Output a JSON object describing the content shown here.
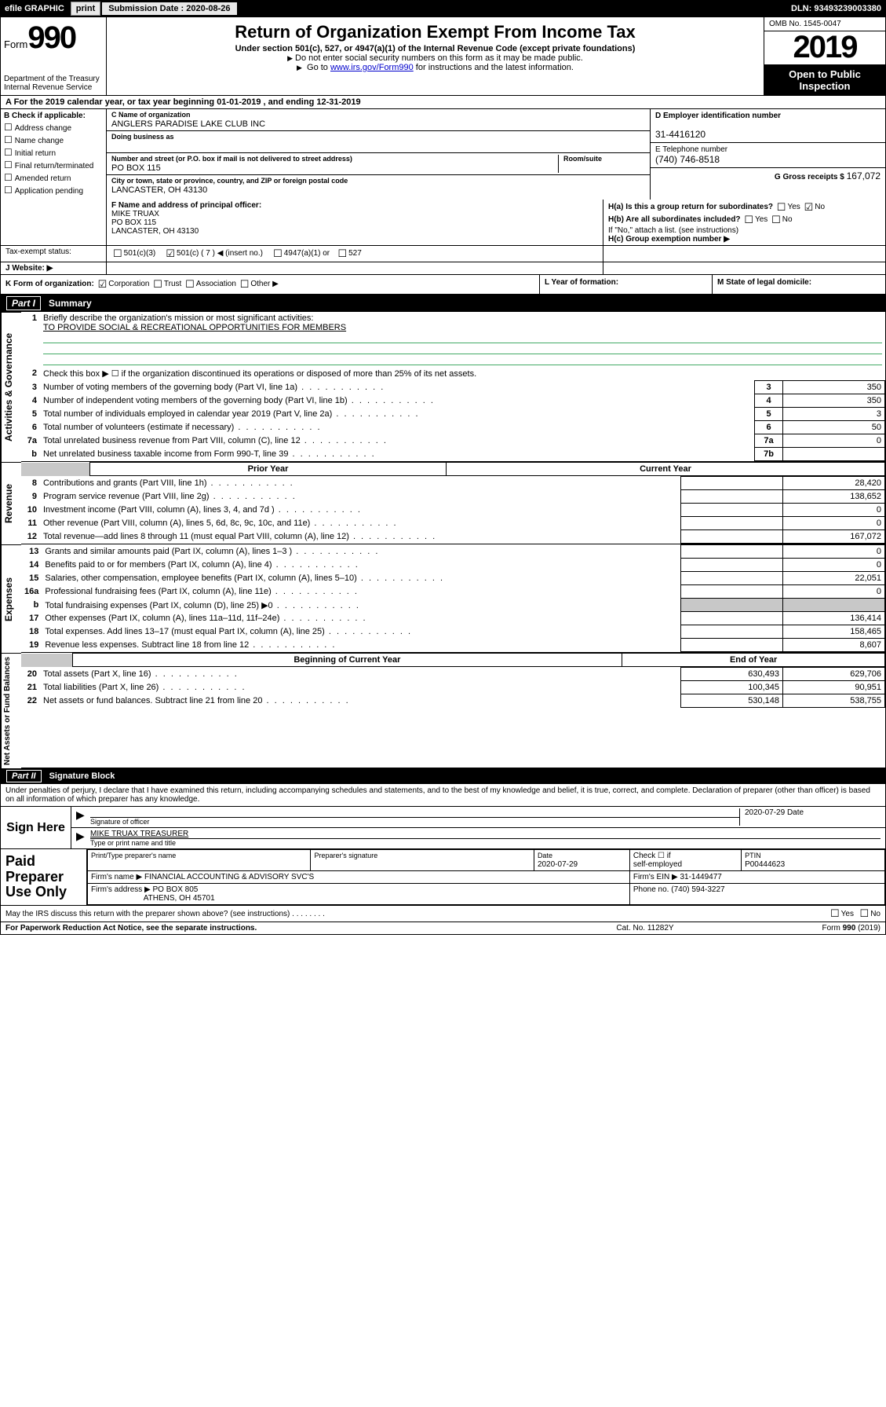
{
  "topbar": {
    "efile": "efile GRAPHIC",
    "print": "print",
    "subLabel": "Submission Date : 2020-08-26",
    "dln": "DLN: 93493239003380"
  },
  "header": {
    "formWord": "Form",
    "formNum": "990",
    "dept": "Department of the Treasury\nInternal Revenue Service",
    "title": "Return of Organization Exempt From Income Tax",
    "sub": "Under section 501(c), 527, or 4947(a)(1) of the Internal Revenue Code (except private foundations)",
    "note1": "Do not enter social security numbers on this form as it may be made public.",
    "note2a": "Go to ",
    "note2link": "www.irs.gov/Form990",
    "note2b": " for instructions and the latest information.",
    "omb": "OMB No. 1545-0047",
    "year": "2019",
    "open1": "Open to Public",
    "open2": "Inspection"
  },
  "rowA": "A  For the 2019 calendar year, or tax year beginning 01-01-2019    , and ending 12-31-2019",
  "colB": {
    "hdr": "B Check if applicable:",
    "items": [
      "Address change",
      "Name change",
      "Initial return",
      "Final return/terminated",
      "Amended return",
      "Application pending"
    ]
  },
  "colC": {
    "nameLabel": "C Name of organization",
    "name": "ANGLERS PARADISE LAKE CLUB INC",
    "dbaLabel": "Doing business as",
    "dba": "",
    "addrLabel": "Number and street (or P.O. box if mail is not delivered to street address)",
    "roomLabel": "Room/suite",
    "addr": "PO BOX 115",
    "cityLabel": "City or town, state or province, country, and ZIP or foreign postal code",
    "city": "LANCASTER, OH  43130"
  },
  "colR": {
    "einLabel": "D Employer identification number",
    "ein": "31-4416120",
    "telLabel": "E Telephone number",
    "tel": "(740) 746-8518",
    "grossLabel": "G Gross receipts $",
    "gross": "167,072"
  },
  "rowF": {
    "label": "F  Name and address of principal officer:",
    "name": "MIKE TRUAX",
    "addr": "PO BOX 115",
    "city": "LANCASTER, OH  43130"
  },
  "rowH": {
    "haLabel": "H(a)  Is this a group return for subordinates?",
    "hbLabel": "H(b)  Are all subordinates included?",
    "hbNote": "If \"No,\" attach a list. (see instructions)",
    "hcLabel": "H(c)  Group exemption number ▶",
    "yes": "Yes",
    "no": "No"
  },
  "rowI": {
    "label": "Tax-exempt status:",
    "o1": "501(c)(3)",
    "o2": "501(c) ( 7 ) ◀ (insert no.)",
    "o3": "4947(a)(1) or",
    "o4": "527"
  },
  "rowJ": {
    "label": "J   Website: ▶"
  },
  "klm": {
    "k": "K Form of organization:",
    "kopts": [
      "Corporation",
      "Trust",
      "Association",
      "Other ▶"
    ],
    "l": "L Year of formation:",
    "m": "M State of legal domicile:"
  },
  "partI": {
    "num": "Part I",
    "title": "Summary"
  },
  "gov": {
    "sideLabel": "Activities & Governance",
    "l1a": "Briefly describe the organization's mission or most significant activities:",
    "l1b": "TO PROVIDE SOCIAL & RECREATIONAL OPPORTUNITIES FOR MEMBERS",
    "l2": "Check this box ▶ ☐  if the organization discontinued its operations or disposed of more than 25% of its net assets.",
    "rows": [
      {
        "n": "3",
        "d": "Number of voting members of the governing body (Part VI, line 1a)",
        "b": "3",
        "v": "350"
      },
      {
        "n": "4",
        "d": "Number of independent voting members of the governing body (Part VI, line 1b)",
        "b": "4",
        "v": "350"
      },
      {
        "n": "5",
        "d": "Total number of individuals employed in calendar year 2019 (Part V, line 2a)",
        "b": "5",
        "v": "3"
      },
      {
        "n": "6",
        "d": "Total number of volunteers (estimate if necessary)",
        "b": "6",
        "v": "50"
      },
      {
        "n": "7a",
        "d": "Total unrelated business revenue from Part VIII, column (C), line 12",
        "b": "7a",
        "v": "0"
      },
      {
        "n": "b",
        "d": "Net unrelated business taxable income from Form 990-T, line 39",
        "b": "7b",
        "v": ""
      }
    ]
  },
  "rev": {
    "sideLabel": "Revenue",
    "hdrPrior": "Prior Year",
    "hdrCurr": "Current Year",
    "rows": [
      {
        "n": "8",
        "d": "Contributions and grants (Part VIII, line 1h)",
        "p": "",
        "c": "28,420"
      },
      {
        "n": "9",
        "d": "Program service revenue (Part VIII, line 2g)",
        "p": "",
        "c": "138,652"
      },
      {
        "n": "10",
        "d": "Investment income (Part VIII, column (A), lines 3, 4, and 7d )",
        "p": "",
        "c": "0"
      },
      {
        "n": "11",
        "d": "Other revenue (Part VIII, column (A), lines 5, 6d, 8c, 9c, 10c, and 11e)",
        "p": "",
        "c": "0"
      },
      {
        "n": "12",
        "d": "Total revenue—add lines 8 through 11 (must equal Part VIII, column (A), line 12)",
        "p": "",
        "c": "167,072"
      }
    ]
  },
  "exp": {
    "sideLabel": "Expenses",
    "rows": [
      {
        "n": "13",
        "d": "Grants and similar amounts paid (Part IX, column (A), lines 1–3 )",
        "p": "",
        "c": "0"
      },
      {
        "n": "14",
        "d": "Benefits paid to or for members (Part IX, column (A), line 4)",
        "p": "",
        "c": "0"
      },
      {
        "n": "15",
        "d": "Salaries, other compensation, employee benefits (Part IX, column (A), lines 5–10)",
        "p": "",
        "c": "22,051"
      },
      {
        "n": "16a",
        "d": "Professional fundraising fees (Part IX, column (A), line 11e)",
        "p": "",
        "c": "0"
      },
      {
        "n": "b",
        "d": "Total fundraising expenses (Part IX, column (D), line 25) ▶0",
        "p": "grey",
        "c": "grey"
      },
      {
        "n": "17",
        "d": "Other expenses (Part IX, column (A), lines 11a–11d, 11f–24e)",
        "p": "",
        "c": "136,414"
      },
      {
        "n": "18",
        "d": "Total expenses. Add lines 13–17 (must equal Part IX, column (A), line 25)",
        "p": "",
        "c": "158,465"
      },
      {
        "n": "19",
        "d": "Revenue less expenses. Subtract line 18 from line 12",
        "p": "",
        "c": "8,607"
      }
    ]
  },
  "na": {
    "sideLabel": "Net Assets or Fund Balances",
    "hdrBeg": "Beginning of Current Year",
    "hdrEnd": "End of Year",
    "rows": [
      {
        "n": "20",
        "d": "Total assets (Part X, line 16)",
        "p": "630,493",
        "c": "629,706"
      },
      {
        "n": "21",
        "d": "Total liabilities (Part X, line 26)",
        "p": "100,345",
        "c": "90,951"
      },
      {
        "n": "22",
        "d": "Net assets or fund balances. Subtract line 21 from line 20",
        "p": "530,148",
        "c": "538,755"
      }
    ]
  },
  "partII": {
    "num": "Part II",
    "title": "Signature Block"
  },
  "sig": {
    "intro": "Under penalties of perjury, I declare that I have examined this return, including accompanying schedules and statements, and to the best of my knowledge and belief, it is true, correct, and complete. Declaration of preparer (other than officer) is based on all information of which preparer has any knowledge.",
    "signHere": "Sign Here",
    "sigOfficer": "Signature of officer",
    "sigDate": "2020-07-29",
    "dateLabel": "Date",
    "typed": "MIKE TRUAX  TREASURER",
    "typedLabel": "Type or print name and title"
  },
  "paid": {
    "label": "Paid Preparer Use Only",
    "h1": "Print/Type preparer's name",
    "h2": "Preparer's signature",
    "h3": "Date",
    "h3v": "2020-07-29",
    "h4a": "Check ☐ if",
    "h4b": "self-employed",
    "h5": "PTIN",
    "h5v": "P00444623",
    "firmNameL": "Firm's name    ▶",
    "firmName": "FINANCIAL ACCOUNTING & ADVISORY SVC'S",
    "firmEinL": "Firm's EIN ▶",
    "firmEin": "31-1449477",
    "firmAddrL": "Firm's address ▶",
    "firmAddr1": "PO BOX 805",
    "firmAddr2": "ATHENS, OH  45701",
    "phoneL": "Phone no.",
    "phone": "(740) 594-3227"
  },
  "discuss": {
    "q": "May the IRS discuss this return with the preparer shown above? (see instructions)",
    "yes": "Yes",
    "no": "No"
  },
  "footer": {
    "l": "For Paperwork Reduction Act Notice, see the separate instructions.",
    "m": "Cat. No. 11282Y",
    "r": "Form 990 (2019)"
  }
}
